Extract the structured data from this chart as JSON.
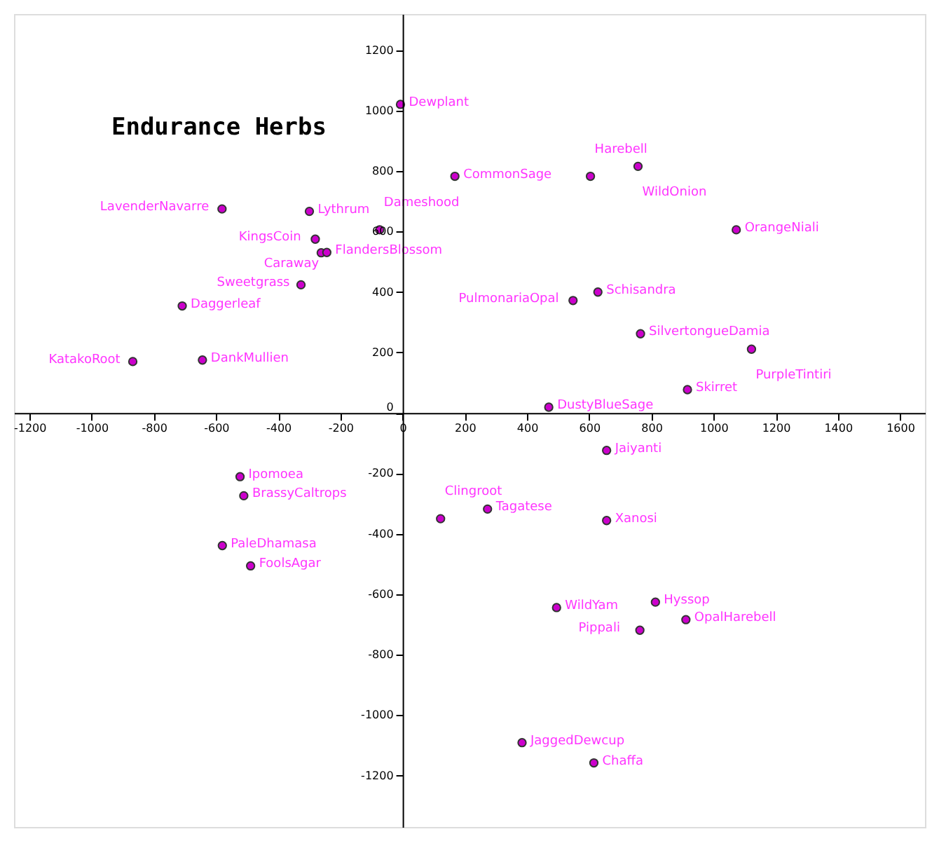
{
  "chart_data": {
    "type": "scatter",
    "title": "Endurance Herbs",
    "series": [
      {
        "color": "#cc00cc",
        "x": [
          -7,
          168,
          604,
          757,
          1073,
          628,
          548,
          765,
          1122,
          916,
          470,
          -581,
          -300,
          -74,
          -281,
          -262,
          -244,
          -327,
          -709,
          -868,
          -644,
          -523,
          -511,
          -580,
          -489,
          122,
          273,
          656,
          656,
          495,
          813,
          911,
          763,
          384,
          615
        ],
        "values": [
          1021,
          783,
          783,
          816,
          606,
          400,
          372,
          262,
          211,
          77,
          19,
          675,
          667,
          606,
          575,
          530,
          531,
          424,
          354,
          170,
          175,
          -211,
          -274,
          -439,
          -506,
          -350,
          -318,
          -124,
          -356,
          -644,
          -626,
          -684,
          -719,
          -1091,
          -1158
        ]
      }
    ],
    "annotations": [
      {
        "text": "Dewplant",
        "x": -7,
        "y": 1021
      },
      {
        "text": "CommonSage",
        "x": 168,
        "y": 783
      },
      {
        "text": "Harebell",
        "x": 604,
        "y": 783
      },
      {
        "text": "WildOnion",
        "x": 757,
        "y": 816
      },
      {
        "text": "OrangeNiali",
        "x": 1073,
        "y": 606
      },
      {
        "text": "Schisandra",
        "x": 628,
        "y": 400
      },
      {
        "text": "PulmonariaOpal",
        "x": 548,
        "y": 372
      },
      {
        "text": "SilvertongueDamia",
        "x": 765,
        "y": 262
      },
      {
        "text": "PurpleTintiri",
        "x": 1122,
        "y": 211
      },
      {
        "text": "Skirret",
        "x": 916,
        "y": 77
      },
      {
        "text": "DustyBlueSage",
        "x": 470,
        "y": 19
      },
      {
        "text": "LavenderNavarre",
        "x": -581,
        "y": 675
      },
      {
        "text": "Lythrum",
        "x": -300,
        "y": 667
      },
      {
        "text": "Dameshood",
        "x": -74,
        "y": 606
      },
      {
        "text": "KingsCoin",
        "x": -281,
        "y": 575
      },
      {
        "text": "Caraway",
        "x": -262,
        "y": 530
      },
      {
        "text": "FlandersBlossom",
        "x": -244,
        "y": 531
      },
      {
        "text": "Sweetgrass",
        "x": -327,
        "y": 424
      },
      {
        "text": "Daggerleaf",
        "x": -709,
        "y": 354
      },
      {
        "text": "KatakoRoot",
        "x": -868,
        "y": 170
      },
      {
        "text": "DankMullien",
        "x": -644,
        "y": 175
      },
      {
        "text": "Ipomoea",
        "x": -523,
        "y": -211
      },
      {
        "text": "BrassyCaltrops",
        "x": -511,
        "y": -274
      },
      {
        "text": "PaleDhamasa",
        "x": -580,
        "y": -439
      },
      {
        "text": "FoolsAgar",
        "x": -489,
        "y": -506
      },
      {
        "text": "Clingroot",
        "x": 122,
        "y": -350
      },
      {
        "text": "Tagatese",
        "x": 273,
        "y": -318
      },
      {
        "text": "Jaiyanti",
        "x": 656,
        "y": -124
      },
      {
        "text": "Xanosi",
        "x": 656,
        "y": -356
      },
      {
        "text": "WildYam",
        "x": 495,
        "y": -644
      },
      {
        "text": "Hyssop",
        "x": 813,
        "y": -626
      },
      {
        "text": "OpalHarebell",
        "x": 911,
        "y": -684
      },
      {
        "text": "Pippali",
        "x": 763,
        "y": -719
      },
      {
        "text": "JaggedDewcup",
        "x": 384,
        "y": -1091
      },
      {
        "text": "Chaffa",
        "x": 615,
        "y": -1158
      }
    ],
    "marker": "circle",
    "grid": false,
    "xlim": [
      -1250,
      1680
    ],
    "ylim": [
      -1370,
      1320
    ],
    "xticks": [
      -1200,
      -1000,
      -800,
      -600,
      -400,
      -200,
      0,
      200,
      400,
      600,
      800,
      1000,
      1200,
      1400,
      1600
    ],
    "yticks": [
      -1200,
      -1000,
      -800,
      -600,
      -400,
      -200,
      0,
      200,
      400,
      600,
      800,
      1000,
      1200
    ]
  }
}
